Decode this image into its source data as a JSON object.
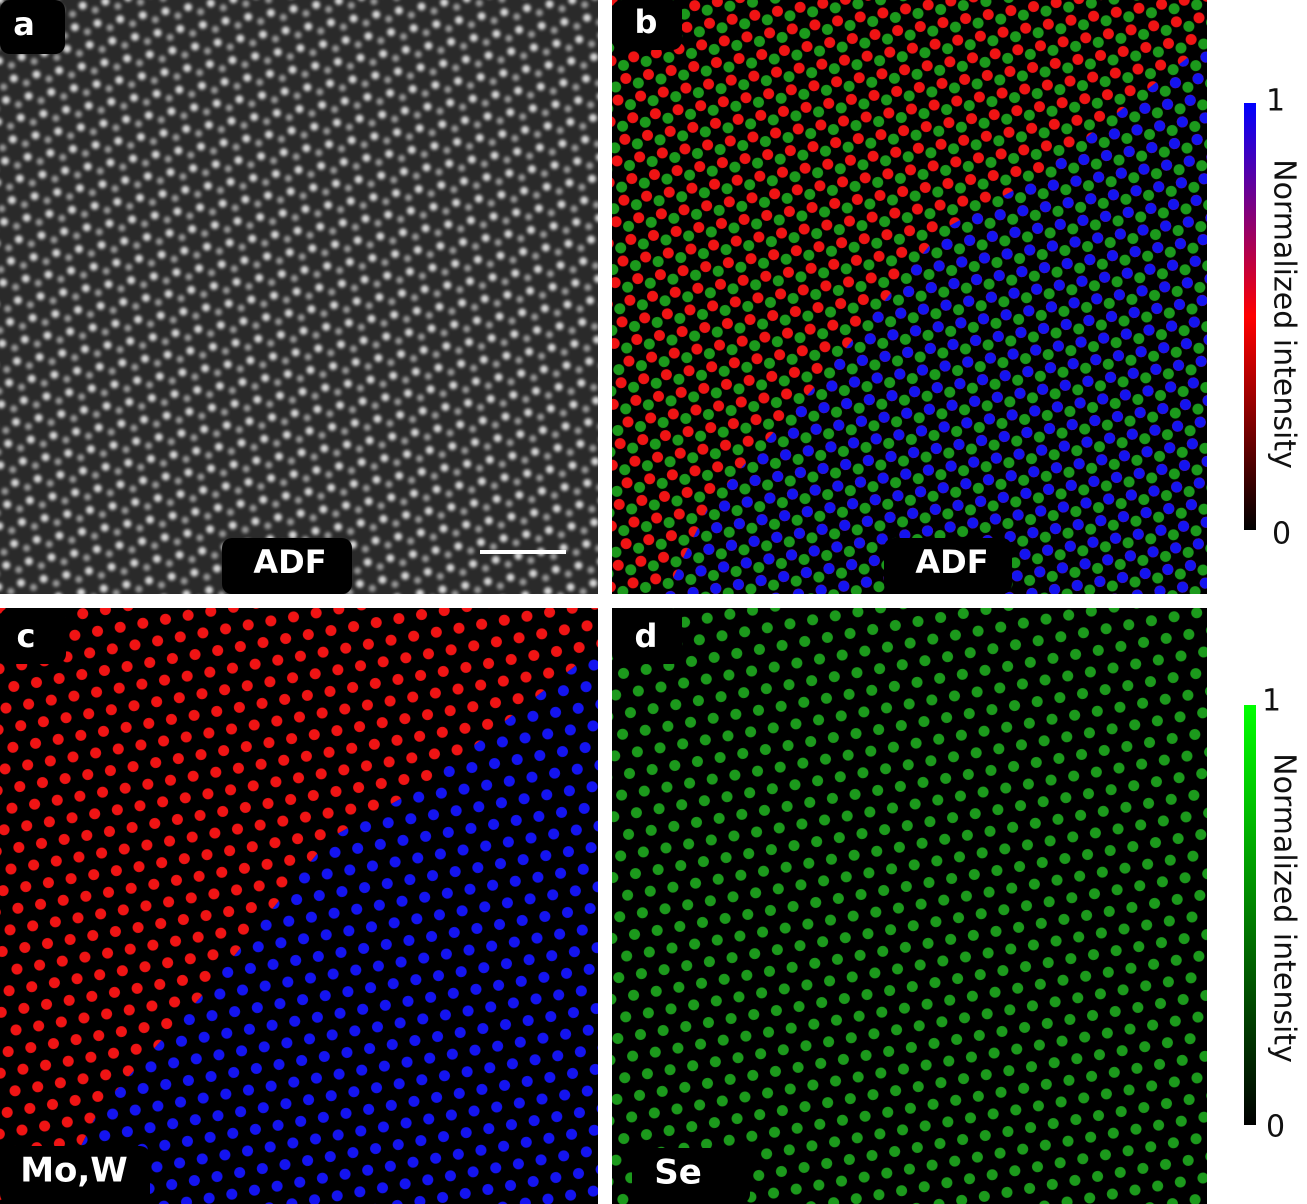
{
  "panels": [
    {
      "letter": "a",
      "caption": "ADF"
    },
    {
      "letter": "b",
      "caption": "ADF"
    },
    {
      "letter": "c",
      "caption": "Mo,W"
    },
    {
      "letter": "d",
      "caption": "Se"
    }
  ],
  "colorbars": [
    {
      "max": "1",
      "label": "Normalized intensity",
      "min": "0"
    },
    {
      "max": "1",
      "label": "Normalized intensity",
      "min": "0"
    }
  ]
}
